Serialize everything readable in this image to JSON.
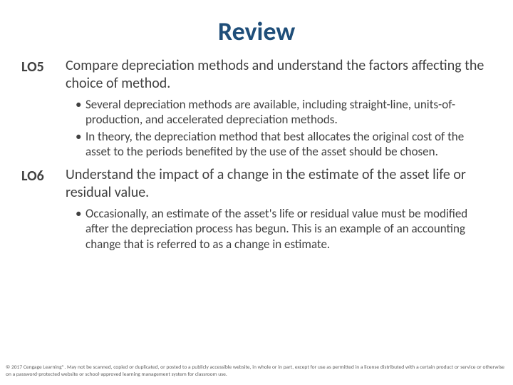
{
  "title": "Review",
  "objectives": [
    {
      "label": "LO5",
      "text": "Compare depreciation methods and understand the factors affecting the choice of method.",
      "bullets": [
        "Several depreciation methods are available, including straight-line, units-of-production, and accelerated depreciation methods.",
        "In theory, the depreciation method that best allocates the original cost of the asset to the periods benefited by the use of the asset should be chosen."
      ]
    },
    {
      "label": "LO6",
      "text": "Understand the impact of a change in the estimate of the asset life or residual value.",
      "bullets": [
        "Occasionally, an estimate of the asset's life or residual value must be modified after the depreciation process has begun. This is an example of an accounting change that is referred to as a change in estimate."
      ]
    }
  ],
  "footer": "© 2017 Cengage Learning®. May not be scanned, copied or duplicated, or posted to a publicly accessible website, in whole or in part, except for use as permitted in a license distributed with a certain product or service or otherwise on a password-protected website or school-approved learning management system for classroom use."
}
